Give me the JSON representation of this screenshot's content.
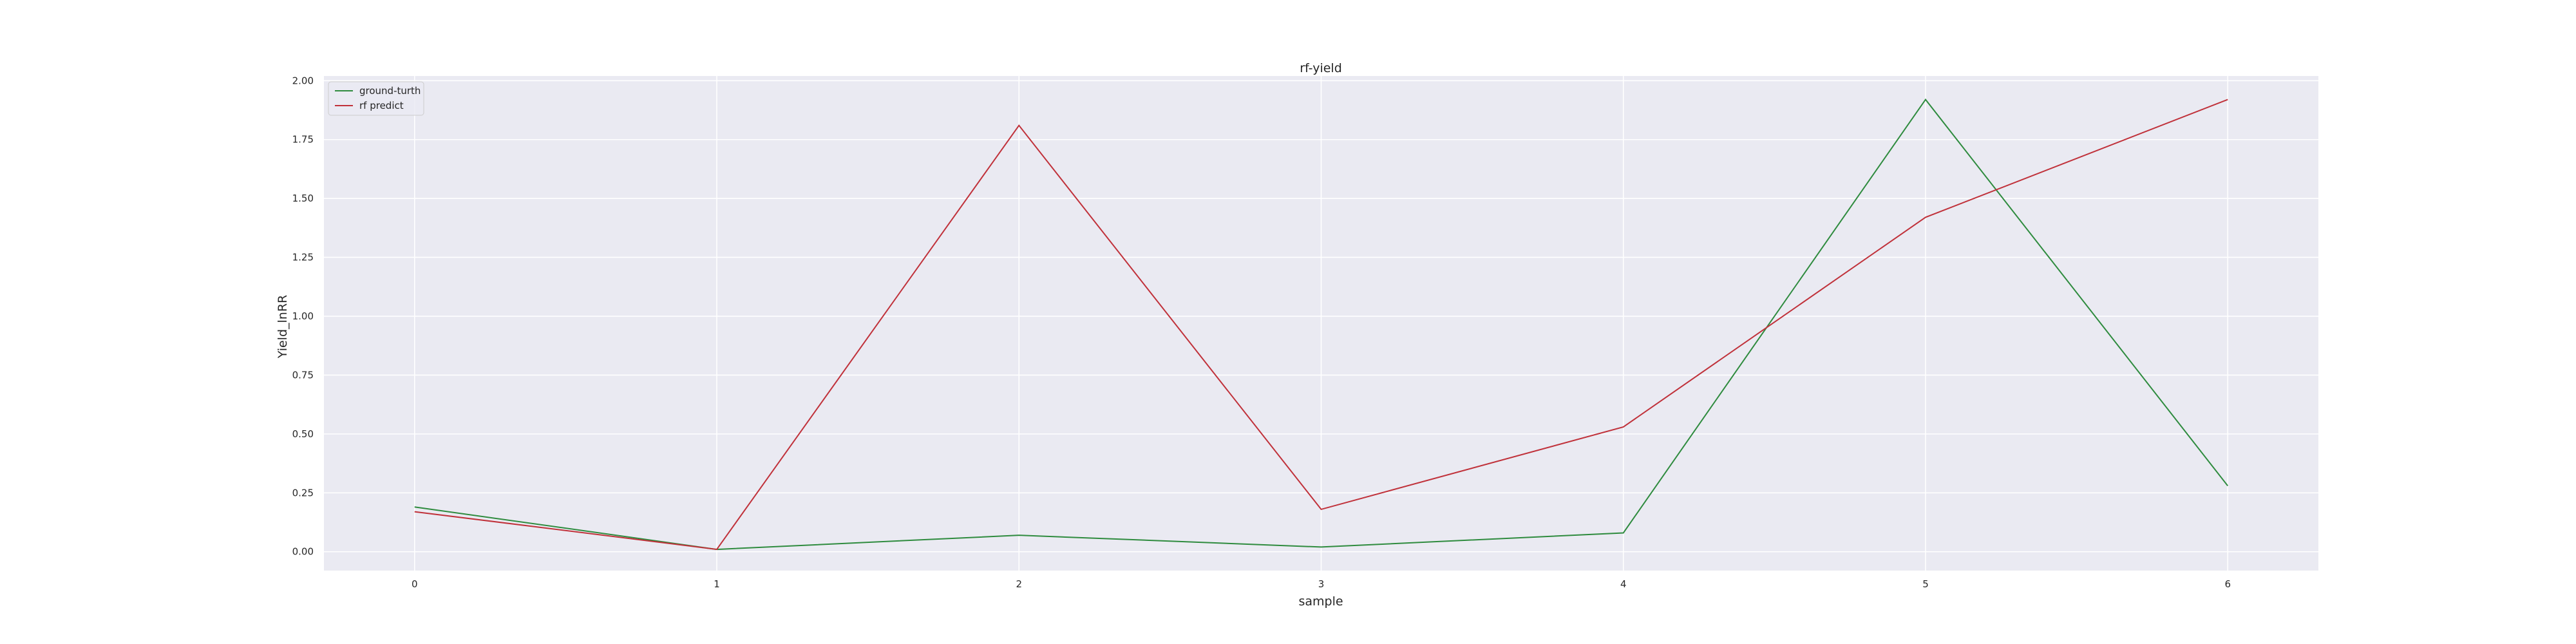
{
  "chart_data": {
    "type": "line",
    "title": "rf-yield",
    "xlabel": "sample",
    "ylabel": "Yield_lnRR",
    "x": [
      0,
      1,
      2,
      3,
      4,
      5,
      6
    ],
    "xticks": [
      "0",
      "1",
      "2",
      "3",
      "4",
      "5",
      "6"
    ],
    "yticks": [
      "0.00",
      "0.25",
      "0.50",
      "0.75",
      "1.00",
      "1.25",
      "1.50",
      "1.75",
      "2.00"
    ],
    "ytick_values": [
      0,
      0.25,
      0.5,
      0.75,
      1.0,
      1.25,
      1.5,
      1.75,
      2.0
    ],
    "xlim": [
      -0.3,
      6.3
    ],
    "ylim": [
      -0.08,
      2.02
    ],
    "grid": true,
    "legend_position": "top-left",
    "background": "#eaeaf2",
    "series": [
      {
        "name": "ground-turth",
        "color": "#2e8b3e",
        "values": [
          0.19,
          0.01,
          0.07,
          0.02,
          0.08,
          1.92,
          0.28
        ]
      },
      {
        "name": "rf predict",
        "color": "#c0313a",
        "values": [
          0.17,
          0.01,
          1.81,
          0.18,
          0.53,
          1.42,
          1.92
        ]
      }
    ]
  }
}
